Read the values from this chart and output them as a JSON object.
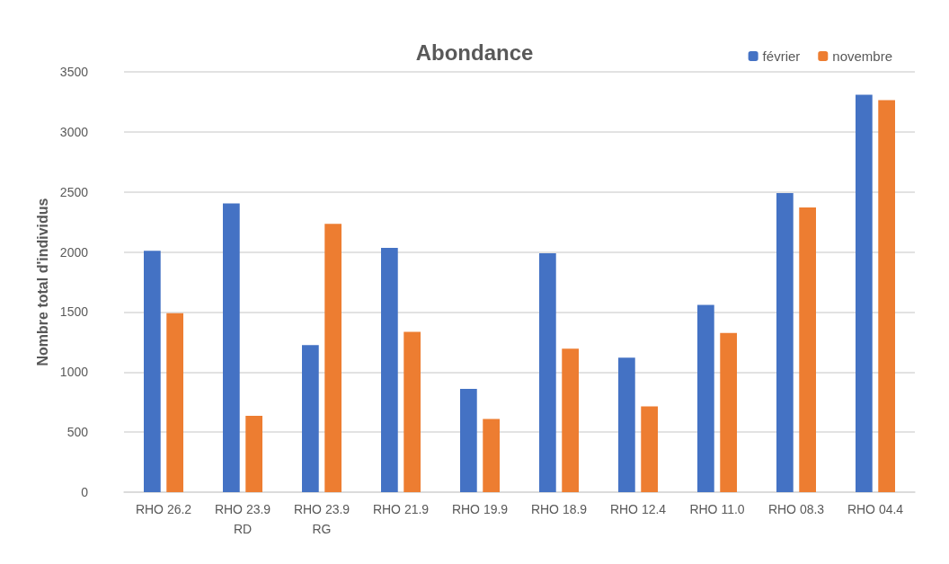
{
  "chart_data": {
    "type": "bar",
    "title": "Abondance",
    "ylabel": "Nombre total d'individus",
    "categories": [
      "RHO 26.2",
      "RHO 23.9\nRD",
      "RHO 23.9\nRG",
      "RHO 21.9",
      "RHO 19.9",
      "RHO 18.9",
      "RHO 12.4",
      "RHO 11.0",
      "RHO 08.3",
      "RHO 04.4"
    ],
    "series": [
      {
        "name": "février",
        "color": "#4472c4",
        "values": [
          2010,
          2405,
          1225,
          2035,
          860,
          1990,
          1120,
          1560,
          2490,
          3310
        ]
      },
      {
        "name": "novembre",
        "color": "#ed7d31",
        "values": [
          1490,
          635,
          2235,
          1335,
          610,
          1195,
          715,
          1325,
          2370,
          3265
        ]
      }
    ],
    "ylim": [
      0,
      3500
    ],
    "yticks": [
      0,
      500,
      1000,
      1500,
      2000,
      2500,
      3000,
      3500
    ],
    "grid": "y",
    "legend": "top right"
  }
}
